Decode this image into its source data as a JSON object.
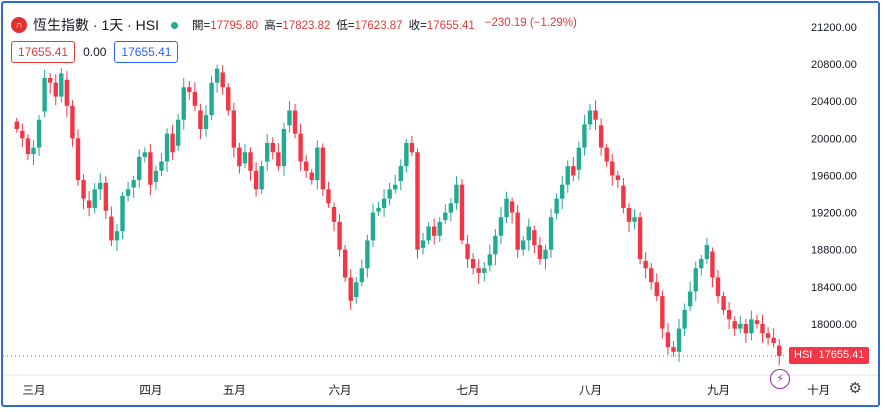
{
  "header": {
    "logo_letter": "∩",
    "title": "恆生指數 · 1天 · HSI",
    "open_label": "開=",
    "open": "17795.80",
    "high_label": "高=",
    "high": "17823.82",
    "low_label": "低=",
    "low": "17623.87",
    "close_label": "收=",
    "close": "17655.41",
    "change": "−230.19 (−1.29%)"
  },
  "boxes": {
    "price_left": "17655.41",
    "change_zero": "0.00",
    "price_right": "17655.41"
  },
  "price_tag": {
    "symbol": "HSI",
    "value": "17655.41"
  },
  "colors": {
    "up": "#22ab94",
    "down": "#f23645",
    "border": "#2f6bd6"
  },
  "icons": {
    "settings": "gear-icon",
    "lightning": "lightning-icon"
  },
  "chart_data": {
    "type": "candlestick",
    "y_ticks": [
      "21200.00",
      "20800.00",
      "20400.00",
      "20000.00",
      "19600.00",
      "19200.00",
      "18800.00",
      "18400.00",
      "18000.00"
    ],
    "y_tick_values": [
      21200,
      20800,
      20400,
      20000,
      19600,
      19200,
      18800,
      18400,
      18000
    ],
    "ylim": [
      17450,
      21350
    ],
    "months": [
      "三月",
      "四月",
      "五月",
      "六月",
      "七月",
      "八月",
      "九月",
      "十月"
    ],
    "month_day_index": [
      3,
      24,
      39,
      58,
      81,
      103,
      126,
      144
    ],
    "current_price": 17655.41,
    "closes": [
      20100,
      20000,
      19830,
      19900,
      20200,
      20650,
      20600,
      20450,
      20700,
      20350,
      20000,
      19550,
      19350,
      19250,
      19450,
      19520,
      19220,
      18900,
      19000,
      19380,
      19450,
      19550,
      19800,
      19850,
      19500,
      19650,
      19750,
      20050,
      19850,
      20200,
      20550,
      20500,
      20350,
      20100,
      20250,
      20600,
      20750,
      20550,
      20300,
      19900,
      19700,
      19850,
      19650,
      19450,
      19700,
      19950,
      19850,
      19700,
      20100,
      20300,
      20050,
      19750,
      19650,
      19550,
      19900,
      19450,
      19300,
      19100,
      18800,
      18500,
      18250,
      18450,
      18600,
      18900,
      19200,
      19250,
      19350,
      19450,
      19500,
      19700,
      19950,
      19850,
      18800,
      18900,
      19050,
      18950,
      19100,
      19200,
      19300,
      19500,
      18900,
      18700,
      18600,
      18550,
      18600,
      18750,
      18950,
      19150,
      19350,
      19200,
      18800,
      18900,
      19050,
      18850,
      18700,
      18800,
      19150,
      19350,
      19500,
      19700,
      19600,
      19900,
      20150,
      20300,
      20200,
      19900,
      19750,
      19600,
      19550,
      19250,
      19100,
      19150,
      18700,
      18600,
      18450,
      18300,
      17950,
      17750,
      17700,
      17950,
      18150,
      18350,
      18600,
      18700,
      18850,
      18500,
      18300,
      18150,
      18050,
      17950,
      18000,
      17900,
      18050,
      18000,
      17900,
      17850,
      17795,
      17655
    ]
  }
}
